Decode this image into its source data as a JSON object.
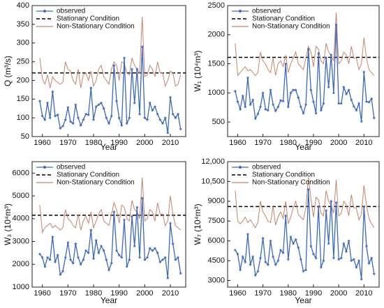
{
  "chart_data": [
    {
      "type": "line",
      "ylabel": "Q (m³/s)",
      "xlabel": "Year",
      "legend": "upper left",
      "xlim": [
        1956,
        2016
      ],
      "xticks": [
        1960,
        1970,
        1980,
        1990,
        2000,
        2010
      ],
      "ylim": [
        50,
        400
      ],
      "yticks": [
        50,
        100,
        150,
        200,
        250,
        300,
        350,
        400
      ],
      "x": [
        1959,
        1960,
        1961,
        1962,
        1963,
        1964,
        1965,
        1966,
        1967,
        1968,
        1969,
        1970,
        1971,
        1972,
        1973,
        1974,
        1975,
        1976,
        1977,
        1978,
        1979,
        1980,
        1981,
        1982,
        1983,
        1984,
        1985,
        1986,
        1987,
        1988,
        1989,
        1990,
        1991,
        1992,
        1993,
        1994,
        1995,
        1996,
        1997,
        1998,
        1999,
        2000,
        2001,
        2002,
        2003,
        2004,
        2005,
        2006,
        2007,
        2008,
        2009,
        2010,
        2011,
        2012,
        2013,
        2014
      ],
      "series": [
        {
          "name": "observed",
          "color": "#3a68c0",
          "marker": "star",
          "values": [
            145,
            105,
            95,
            140,
            100,
            170,
            105,
            108,
            72,
            78,
            95,
            128,
            90,
            85,
            135,
            100,
            80,
            95,
            110,
            108,
            180,
            95,
            130,
            135,
            140,
            125,
            100,
            85,
            105,
            240,
            145,
            100,
            80,
            260,
            85,
            100,
            230,
            140,
            230,
            110,
            290,
            100,
            95,
            140,
            120,
            130,
            110,
            95,
            85,
            100,
            60,
            155,
            110,
            100,
            110,
            70
          ]
        },
        {
          "name": "Stationary Condition",
          "color": "#000000",
          "style": "dashed",
          "value": 220
        },
        {
          "name": "Non-Stationary Condition",
          "color": "#c8826a",
          "values": [
            260,
            205,
            190,
            215,
            180,
            210,
            200,
            195,
            190,
            195,
            250,
            230,
            225,
            200,
            190,
            230,
            180,
            215,
            220,
            200,
            225,
            185,
            200,
            230,
            240,
            210,
            200,
            190,
            230,
            250,
            240,
            200,
            250,
            245,
            220,
            215,
            260,
            240,
            230,
            220,
            370,
            210,
            215,
            240,
            230,
            210,
            250,
            220,
            220,
            185,
            200,
            225,
            220,
            185,
            190,
            215
          ]
        }
      ]
    },
    {
      "type": "line",
      "ylabel": "W₁ (10⁴m³)",
      "xlabel": "Year",
      "legend": "upper left",
      "xlim": [
        1956,
        2016
      ],
      "xticks": [
        1960,
        1970,
        1980,
        1990,
        2000,
        2010
      ],
      "ylim": [
        250,
        2500
      ],
      "yticks": [
        500,
        1000,
        1500,
        2000,
        2500
      ],
      "x": [
        1959,
        1960,
        1961,
        1962,
        1963,
        1964,
        1965,
        1966,
        1967,
        1968,
        1969,
        1970,
        1971,
        1972,
        1973,
        1974,
        1975,
        1976,
        1977,
        1978,
        1979,
        1980,
        1981,
        1982,
        1983,
        1984,
        1985,
        1986,
        1987,
        1988,
        1989,
        1990,
        1991,
        1992,
        1993,
        1994,
        1995,
        1996,
        1997,
        1998,
        1999,
        2000,
        2001,
        2002,
        2003,
        2004,
        2005,
        2006,
        2007,
        2008,
        2009,
        2010,
        2011,
        2012,
        2013,
        2014
      ],
      "series": [
        {
          "name": "observed",
          "color": "#3a68c0",
          "marker": "star",
          "values": [
            1030,
            850,
            720,
            950,
            760,
            1260,
            800,
            880,
            560,
            640,
            760,
            1000,
            720,
            700,
            1050,
            800,
            690,
            760,
            870,
            860,
            1500,
            760,
            1000,
            1050,
            1050,
            920,
            760,
            650,
            800,
            1750,
            1050,
            850,
            650,
            1680,
            700,
            820,
            1600,
            1100,
            1650,
            1000,
            2170,
            820,
            820,
            1100,
            980,
            1050,
            880,
            770,
            700,
            820,
            510,
            1360,
            850,
            840,
            900,
            570
          ]
        },
        {
          "name": "Stationary Condition",
          "color": "#000000",
          "style": "dashed",
          "value": 1610
        },
        {
          "name": "Non-Stationary Condition",
          "color": "#c8826a",
          "values": [
            1850,
            1300,
            1350,
            1400,
            1450,
            1380,
            1400,
            1350,
            1300,
            1350,
            1700,
            1550,
            1500,
            1400,
            1350,
            1600,
            1300,
            1500,
            1550,
            1450,
            1650,
            1350,
            1500,
            1600,
            1700,
            1500,
            1450,
            1400,
            1600,
            1800,
            1700,
            1450,
            1800,
            1750,
            1550,
            1500,
            1850,
            1700,
            1650,
            1550,
            2380,
            1500,
            1550,
            1700,
            1650,
            1500,
            1800,
            1600,
            1600,
            1400,
            1500,
            1950,
            1600,
            1400,
            1350,
            1300
          ]
        }
      ]
    },
    {
      "type": "line",
      "ylabel": "W₃ (10⁴m³)",
      "xlabel": "Year",
      "legend": "upper left",
      "xlim": [
        1956,
        2016
      ],
      "xticks": [
        1960,
        1970,
        1980,
        1990,
        2000,
        2010
      ],
      "ylim": [
        1000,
        6500
      ],
      "yticks": [
        1000,
        2000,
        3000,
        4000,
        5000,
        6000
      ],
      "x": [
        1959,
        1960,
        1961,
        1962,
        1963,
        1964,
        1965,
        1966,
        1967,
        1968,
        1969,
        1970,
        1971,
        1972,
        1973,
        1974,
        1975,
        1976,
        1977,
        1978,
        1979,
        1980,
        1981,
        1982,
        1983,
        1984,
        1985,
        1986,
        1987,
        1988,
        1989,
        1990,
        1991,
        1992,
        1993,
        1994,
        1995,
        1996,
        1997,
        1998,
        1999,
        2000,
        2001,
        2002,
        2003,
        2004,
        2005,
        2006,
        2007,
        2008,
        2009,
        2010,
        2011,
        2012,
        2013,
        2014
      ],
      "series": [
        {
          "name": "observed",
          "color": "#3a68c0",
          "marker": "star",
          "values": [
            2450,
            2300,
            1900,
            2300,
            2200,
            3200,
            2100,
            2400,
            1550,
            1700,
            2300,
            2950,
            2200,
            2050,
            2900,
            2300,
            2000,
            2200,
            2600,
            2500,
            3500,
            2250,
            3050,
            2500,
            2800,
            2600,
            2200,
            1750,
            2050,
            4300,
            2600,
            2400,
            2300,
            3950,
            1900,
            2200,
            4100,
            2800,
            4500,
            2300,
            4900,
            2200,
            2300,
            2700,
            2600,
            2700,
            2500,
            2100,
            2200,
            2300,
            1400,
            3800,
            2900,
            2200,
            2300,
            1600
          ]
        },
        {
          "name": "Stationary Condition",
          "color": "#000000",
          "style": "dashed",
          "value": 4150
        },
        {
          "name": "Non-Stationary Condition",
          "color": "#c8826a",
          "values": [
            4600,
            3400,
            3600,
            3700,
            3800,
            3600,
            3700,
            3600,
            3500,
            3600,
            4400,
            4000,
            3900,
            3700,
            3600,
            4200,
            3500,
            3900,
            4100,
            3800,
            4300,
            3600,
            3900,
            4200,
            4400,
            3900,
            3800,
            3700,
            4200,
            4700,
            4400,
            3800,
            4600,
            4500,
            4000,
            3900,
            4800,
            4400,
            4300,
            4000,
            5800,
            3900,
            4000,
            4400,
            4300,
            3900,
            4700,
            4200,
            4200,
            3700,
            3900,
            5000,
            4200,
            3700,
            3600,
            3500
          ]
        }
      ]
    },
    {
      "type": "line",
      "ylabel": "W₇ (10⁴m³)",
      "xlabel": "Year",
      "legend": "upper left",
      "xlim": [
        1956,
        2016
      ],
      "xticks": [
        1960,
        1970,
        1980,
        1990,
        2000,
        2010
      ],
      "ylim": [
        2500,
        12000
      ],
      "yticks": [
        3000,
        4500,
        6000,
        7500,
        9000,
        {
          "value": 10500,
          "label": "10,500"
        },
        {
          "value": 12000,
          "label": "12,000"
        }
      ],
      "x": [
        1959,
        1960,
        1961,
        1962,
        1963,
        1964,
        1965,
        1966,
        1967,
        1968,
        1969,
        1970,
        1971,
        1972,
        1973,
        1974,
        1975,
        1976,
        1977,
        1978,
        1979,
        1980,
        1981,
        1982,
        1983,
        1984,
        1985,
        1986,
        1987,
        1988,
        1989,
        1990,
        1991,
        1992,
        1993,
        1994,
        1995,
        1996,
        1997,
        1998,
        1999,
        2000,
        2001,
        2002,
        2003,
        2004,
        2005,
        2006,
        2007,
        2008,
        2009,
        2010,
        2011,
        2012,
        2013,
        2014
      ],
      "series": [
        {
          "name": "observed",
          "color": "#3a68c0",
          "marker": "star",
          "values": [
            5300,
            5000,
            3800,
            4800,
            4400,
            6500,
            4200,
            4800,
            3400,
            3700,
            4700,
            6200,
            4400,
            4200,
            6000,
            4800,
            4200,
            4500,
            5300,
            5100,
            7900,
            4600,
            6300,
            5800,
            6100,
            5500,
            4600,
            3700,
            3800,
            9900,
            5600,
            5000,
            4700,
            8600,
            4000,
            4500,
            8300,
            5800,
            9000,
            4700,
            8900,
            4600,
            4700,
            5800,
            5200,
            6000,
            4500,
            4600,
            4000,
            4500,
            3100,
            8600,
            5600,
            4300,
            4700,
            3500
          ]
        },
        {
          "name": "Stationary Condition",
          "color": "#000000",
          "style": "dashed",
          "value": 8600
        },
        {
          "name": "Non-Stationary Condition",
          "color": "#c8826a",
          "values": [
            9800,
            7500,
            7300,
            7500,
            7800,
            7400,
            7600,
            7300,
            7000,
            7400,
            9000,
            8200,
            7900,
            7500,
            7400,
            8600,
            7200,
            7800,
            8200,
            7700,
            9000,
            7300,
            7800,
            8500,
            9000,
            8000,
            7800,
            7600,
            8500,
            10800,
            9200,
            7800,
            9300,
            9100,
            8100,
            7900,
            9800,
            9000,
            8700,
            8100,
            10600,
            7900,
            8100,
            9000,
            8700,
            7900,
            9500,
            8500,
            8500,
            7600,
            8000,
            10200,
            8700,
            7700,
            7300,
            7000
          ]
        }
      ]
    }
  ]
}
